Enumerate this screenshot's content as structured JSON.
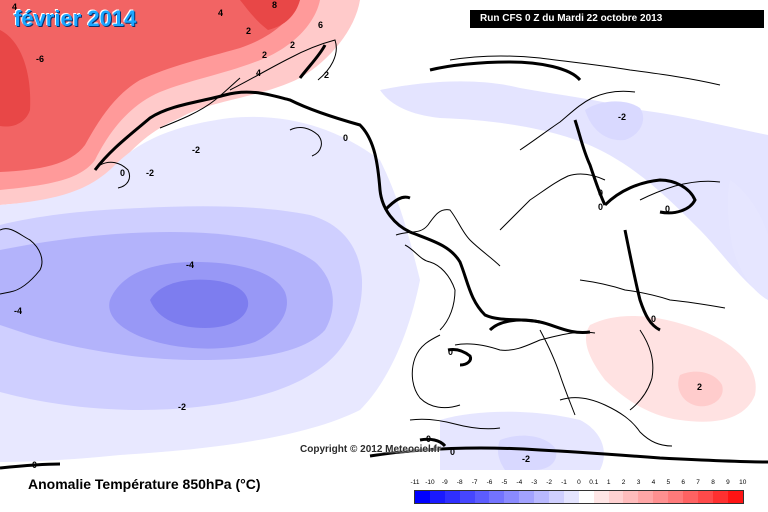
{
  "title": "février 2014",
  "run_label": "Run CFS 0 Z du Mardi 22 octobre 2013",
  "copyright": "Copyright © 2012 Meteociel.fr",
  "legend": {
    "title": "Anomalie Température 850hPa (°C)",
    "unit": "°C",
    "tick_labels": [
      "-11",
      "-10",
      "-9",
      "-8",
      "-7",
      "-6",
      "-5",
      "-4",
      "-3",
      "-2",
      "-1",
      "0",
      "0.1",
      "1",
      "2",
      "3",
      "4",
      "5",
      "6",
      "7",
      "8",
      "9",
      "10"
    ],
    "scale_colors": [
      "#0000ff",
      "#1a1aff",
      "#2f2fff",
      "#4646ff",
      "#5c5cff",
      "#7373ff",
      "#8a8aff",
      "#a2a2ff",
      "#b9b9ff",
      "#cfcfff",
      "#e4e4ff",
      "#ffffff",
      "#ffe6e6",
      "#ffd1d1",
      "#ffbcbc",
      "#ffa6a6",
      "#ff9090",
      "#ff7a7a",
      "#ff6262",
      "#ff4a4a",
      "#ff3030",
      "#ff1414"
    ]
  },
  "contour_labels": [
    "8",
    "4",
    "4",
    "6",
    "2",
    "2",
    "4",
    "2",
    "-6",
    "2",
    "-2",
    "0",
    "0",
    "-2",
    "-2",
    "0",
    "0",
    "0",
    "-4",
    "-4",
    "0",
    "0",
    "-2",
    "0",
    "0",
    "2",
    "0",
    "-2"
  ],
  "colors": {
    "positive_strong": "#f05858",
    "positive_mid": "#ff8d8d",
    "positive_light": "#ffc7c7",
    "negative_light": "#e6e6ff",
    "negative_mid": "#c8c8ff",
    "negative_strong": "#8080f2",
    "land_border": "#000000"
  }
}
